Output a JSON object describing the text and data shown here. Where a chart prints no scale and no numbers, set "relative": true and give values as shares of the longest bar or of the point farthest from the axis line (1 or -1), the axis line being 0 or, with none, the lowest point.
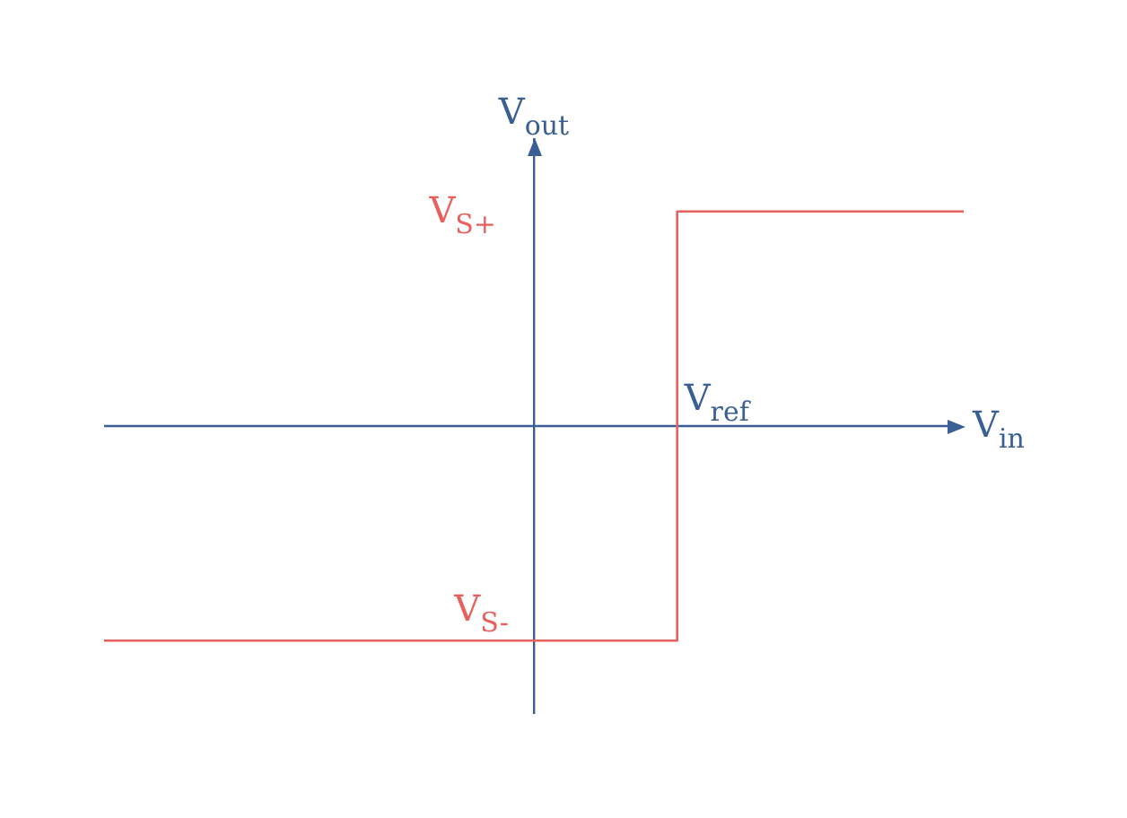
{
  "chart_data": {
    "type": "step",
    "relative": true,
    "categories": [
      null,
      null,
      null,
      null,
      null,
      null,
      null
    ],
    "series": [
      {
        "color": "#e8605c",
        "values": [
          -1,
          -1,
          -1,
          -1,
          1,
          1,
          1
        ]
      }
    ],
    "xlabel": "V$_{in}$",
    "ylabel": "V$_{out}$",
    "ref_lines": [
      {
        "axis": "y",
        "value": 0,
        "color": "#3a5f95"
      }
    ],
    "annotations": [
      "V$_{S+}$",
      "V$_{S-}$",
      "V$_{ref}$"
    ]
  }
}
